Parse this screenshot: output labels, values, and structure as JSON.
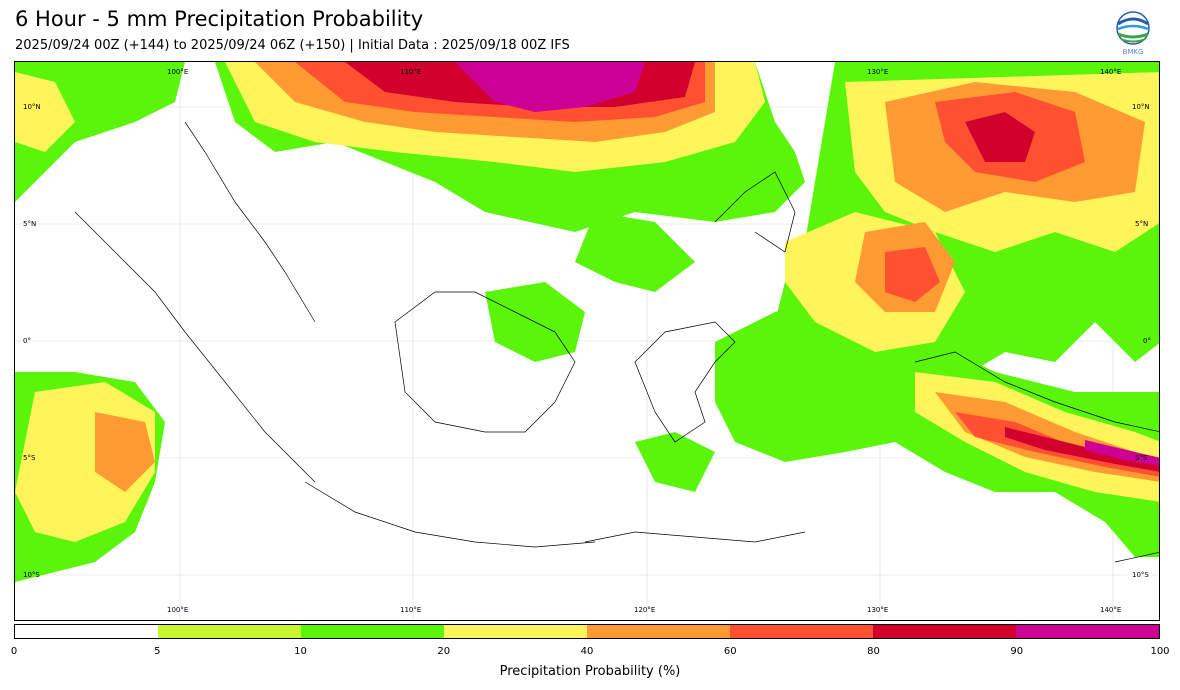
{
  "title": "6 Hour - 5 mm Precipitation Probability",
  "subtitle": "2025/09/24 00Z (+144) to 2025/09/24 06Z (+150) | Initial Data : 2025/09/18 00Z IFS",
  "logo_text": "BMKG",
  "map": {
    "lon_labels": [
      "100°E",
      "110°E",
      "120°E",
      "130°E",
      "140°E"
    ],
    "lat_labels": [
      "10°N",
      "5°N",
      "0°",
      "5°S",
      "10°S"
    ]
  },
  "colorbar": {
    "label": "Precipitation Probability (%)",
    "ticks": [
      "0",
      "5",
      "10",
      "20",
      "40",
      "60",
      "80",
      "90",
      "100"
    ],
    "colors": [
      "#ffffff",
      "#c8f52c",
      "#5af50a",
      "#fff55a",
      "#ff9b32",
      "#ff5032",
      "#d2002d",
      "#cd0096"
    ]
  },
  "colors": {
    "light_green": "#c8f52c",
    "green": "#5af50a",
    "yellow": "#fff55a",
    "orange": "#ff9b32",
    "red_orange": "#ff5032",
    "red": "#d2002d",
    "magenta": "#cd0096"
  }
}
